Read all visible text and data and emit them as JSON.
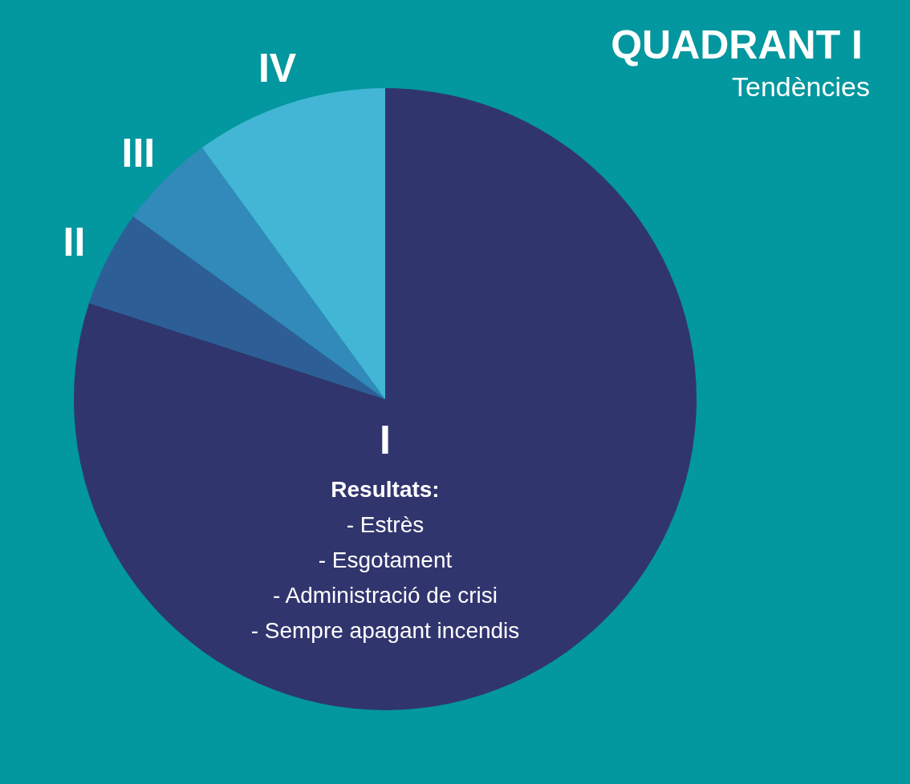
{
  "chart_data": {
    "type": "pie",
    "title": "QUADRANT I",
    "subtitle": "Tendències",
    "categories": [
      "I",
      "II",
      "III",
      "IV"
    ],
    "values": [
      80,
      5,
      5,
      10
    ],
    "colors": [
      "#31356e",
      "#2e5e96",
      "#318aba",
      "#42b6d4"
    ],
    "annotations": [
      "Resultats:",
      "- Estrès",
      "- Esgotament",
      "- Administració de crisi",
      "- Sempre apagant incendis"
    ]
  }
}
